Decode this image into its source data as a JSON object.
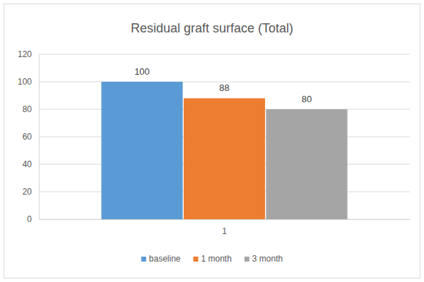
{
  "chart_data": {
    "type": "bar",
    "title": "Residual graft surface (Total)",
    "categories": [
      "1"
    ],
    "series": [
      {
        "name": "baseline",
        "color": "#5b9bd5",
        "values": [
          100
        ]
      },
      {
        "name": "1 month",
        "color": "#ed7d31",
        "values": [
          88
        ]
      },
      {
        "name": "3 month",
        "color": "#a5a5a5",
        "values": [
          80
        ]
      }
    ],
    "ylim": [
      0,
      120
    ],
    "yticks": [
      0,
      20,
      40,
      60,
      80,
      100,
      120
    ],
    "grid": true,
    "legend": "bottom",
    "data_labels": true
  }
}
